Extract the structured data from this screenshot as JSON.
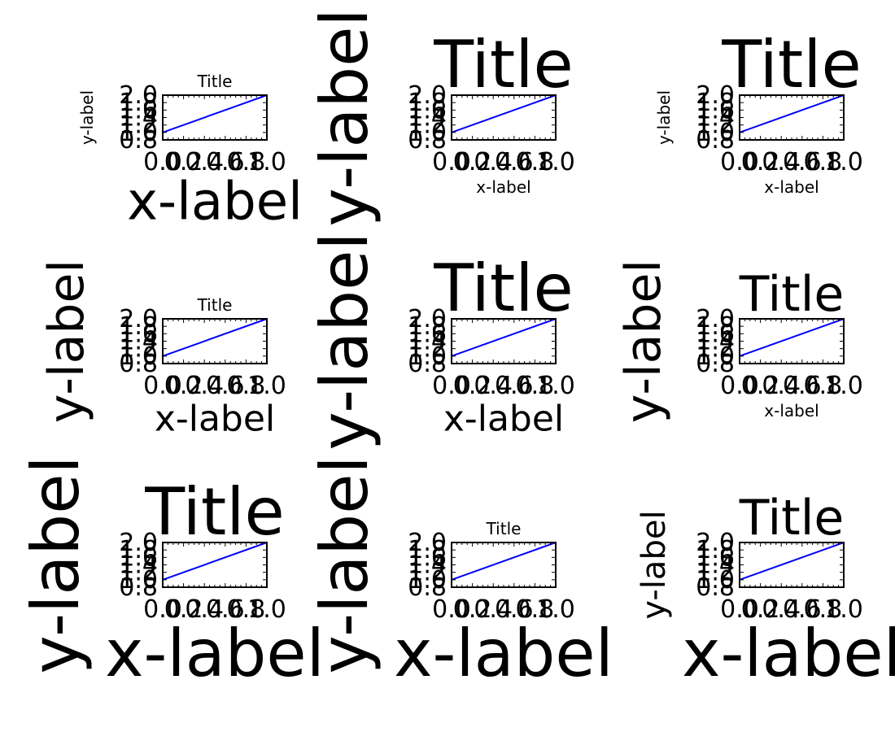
{
  "figure": {
    "background": "#ffffff",
    "line_color": "#0000ff",
    "axes_color": "#000000"
  },
  "chart_data": [
    {
      "type": "line",
      "title": "Title",
      "xlabel": "x-label",
      "ylabel": "y-label",
      "x": [
        0.0,
        1.0
      ],
      "y": [
        1.0,
        2.0
      ],
      "xlim": [
        0.0,
        1.0
      ],
      "ylim": [
        0.8,
        2.0
      ],
      "xticks": [
        "0.0",
        "0.2",
        "0.4",
        "0.6",
        "0.8",
        "1.0"
      ],
      "yticks": [
        "0.8",
        "1.0",
        "1.2",
        "1.4",
        "1.6",
        "1.8",
        "2.0"
      ],
      "grid": false,
      "legend": null
    },
    {
      "type": "line",
      "title": "Title",
      "xlabel": "x-label",
      "ylabel": "y-label",
      "x": [
        0.0,
        1.0
      ],
      "y": [
        1.0,
        2.0
      ],
      "xlim": [
        0.0,
        1.0
      ],
      "ylim": [
        0.8,
        2.0
      ],
      "xticks": [
        "0.0",
        "0.2",
        "0.4",
        "0.6",
        "0.8",
        "1.0"
      ],
      "yticks": [
        "0.8",
        "1.0",
        "1.2",
        "1.4",
        "1.6",
        "1.8",
        "2.0"
      ],
      "grid": false,
      "legend": null
    },
    {
      "type": "line",
      "title": "Title",
      "xlabel": "x-label",
      "ylabel": "y-label",
      "x": [
        0.0,
        1.0
      ],
      "y": [
        1.0,
        2.0
      ],
      "xlim": [
        0.0,
        1.0
      ],
      "ylim": [
        0.8,
        2.0
      ],
      "xticks": [
        "0.0",
        "0.2",
        "0.4",
        "0.6",
        "0.8",
        "1.0"
      ],
      "yticks": [
        "0.8",
        "1.0",
        "1.2",
        "1.4",
        "1.6",
        "1.8",
        "2.0"
      ],
      "grid": false,
      "legend": null
    },
    {
      "type": "line",
      "title": "Title",
      "xlabel": "x-label",
      "ylabel": "y-label",
      "x": [
        0.0,
        1.0
      ],
      "y": [
        1.0,
        2.0
      ],
      "xlim": [
        0.0,
        1.0
      ],
      "ylim": [
        0.8,
        2.0
      ],
      "xticks": [
        "0.0",
        "0.2",
        "0.4",
        "0.6",
        "0.8",
        "1.0"
      ],
      "yticks": [
        "0.8",
        "1.0",
        "1.2",
        "1.4",
        "1.6",
        "1.8",
        "2.0"
      ],
      "grid": false,
      "legend": null
    },
    {
      "type": "line",
      "title": "Title",
      "xlabel": "x-label",
      "ylabel": "y-label",
      "x": [
        0.0,
        1.0
      ],
      "y": [
        1.0,
        2.0
      ],
      "xlim": [
        0.0,
        1.0
      ],
      "ylim": [
        0.8,
        2.0
      ],
      "xticks": [
        "0.0",
        "0.2",
        "0.4",
        "0.6",
        "0.8",
        "1.0"
      ],
      "yticks": [
        "0.8",
        "1.0",
        "1.2",
        "1.4",
        "1.6",
        "1.8",
        "2.0"
      ],
      "grid": false,
      "legend": null
    },
    {
      "type": "line",
      "title": "Title",
      "xlabel": "x-label",
      "ylabel": "y-label",
      "x": [
        0.0,
        1.0
      ],
      "y": [
        1.0,
        2.0
      ],
      "xlim": [
        0.0,
        1.0
      ],
      "ylim": [
        0.8,
        2.0
      ],
      "xticks": [
        "0.0",
        "0.2",
        "0.4",
        "0.6",
        "0.8",
        "1.0"
      ],
      "yticks": [
        "0.8",
        "1.0",
        "1.2",
        "1.4",
        "1.6",
        "1.8",
        "2.0"
      ],
      "grid": false,
      "legend": null
    },
    {
      "type": "line",
      "title": "Title",
      "xlabel": "x-label",
      "ylabel": "y-label",
      "x": [
        0.0,
        1.0
      ],
      "y": [
        1.0,
        2.0
      ],
      "xlim": [
        0.0,
        1.0
      ],
      "ylim": [
        0.8,
        2.0
      ],
      "xticks": [
        "0.0",
        "0.2",
        "0.4",
        "0.6",
        "0.8",
        "1.0"
      ],
      "yticks": [
        "0.8",
        "1.0",
        "1.2",
        "1.4",
        "1.6",
        "1.8",
        "2.0"
      ],
      "grid": false,
      "legend": null
    },
    {
      "type": "line",
      "title": "Title",
      "xlabel": "x-label",
      "ylabel": "y-label",
      "x": [
        0.0,
        1.0
      ],
      "y": [
        1.0,
        2.0
      ],
      "xlim": [
        0.0,
        1.0
      ],
      "ylim": [
        0.8,
        2.0
      ],
      "xticks": [
        "0.0",
        "0.2",
        "0.4",
        "0.6",
        "0.8",
        "1.0"
      ],
      "yticks": [
        "0.8",
        "1.0",
        "1.2",
        "1.4",
        "1.6",
        "1.8",
        "2.0"
      ],
      "grid": false,
      "legend": null
    },
    {
      "type": "line",
      "title": "Title",
      "xlabel": "x-label",
      "ylabel": "y-label",
      "x": [
        0.0,
        1.0
      ],
      "y": [
        1.0,
        2.0
      ],
      "xlim": [
        0.0,
        1.0
      ],
      "ylim": [
        0.8,
        2.0
      ],
      "xticks": [
        "0.0",
        "0.2",
        "0.4",
        "0.6",
        "0.8",
        "1.0"
      ],
      "yticks": [
        "0.8",
        "1.0",
        "1.2",
        "1.4",
        "1.6",
        "1.8",
        "2.0"
      ],
      "grid": false,
      "legend": null
    }
  ]
}
